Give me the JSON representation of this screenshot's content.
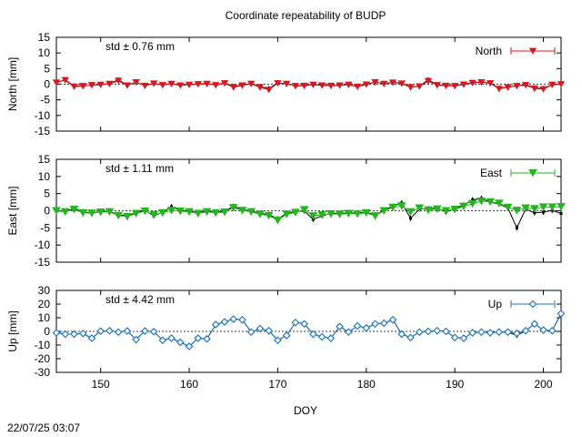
{
  "title": "Coordinate repeatability of BUDP",
  "timestamp": "22/07/25 03:07",
  "chart_data": {
    "type": "line",
    "x_axis": {
      "label": "DOY",
      "range": [
        145,
        202
      ],
      "ticks": [
        "150",
        "160",
        "170",
        "180",
        "190",
        "200"
      ]
    },
    "x": [
      145,
      146,
      147,
      148,
      149,
      150,
      151,
      152,
      153,
      154,
      155,
      156,
      157,
      158,
      159,
      160,
      161,
      162,
      163,
      164,
      165,
      166,
      167,
      168,
      169,
      170,
      171,
      172,
      173,
      174,
      175,
      176,
      177,
      178,
      179,
      180,
      181,
      182,
      183,
      184,
      185,
      186,
      187,
      188,
      189,
      190,
      191,
      192,
      193,
      194,
      195,
      196,
      197,
      198,
      199,
      200,
      201,
      202
    ],
    "panels": [
      {
        "ylabel": "North [mm]",
        "ylim": [
          -15,
          15
        ],
        "yticks": [
          "15",
          "10",
          "5",
          "0",
          "-5",
          "-10",
          "-15"
        ],
        "std_text": "std ± 0.76 mm",
        "legend": "North",
        "color": "#e0141c",
        "values": [
          0.5,
          1.3,
          -0.8,
          -0.6,
          -0.3,
          -0.2,
          0.1,
          1.1,
          -0.4,
          0.6,
          -0.5,
          0.2,
          -0.3,
          0.1,
          -0.4,
          -0.2,
          0.0,
          0.1,
          -0.3,
          0.3,
          -1.0,
          -0.4,
          0.1,
          -1.0,
          -1.8,
          0.3,
          0.1,
          -0.6,
          -0.5,
          -0.2,
          -0.4,
          -0.5,
          -0.4,
          -0.2,
          -0.8,
          -0.1,
          0.6,
          0.1,
          0.5,
          0.2,
          -1.0,
          -0.7,
          1.0,
          -0.3,
          -0.5,
          -0.6,
          -0.1,
          0.4,
          0.6,
          0.3,
          -1.5,
          -1.0,
          -0.6,
          -0.3,
          -1.4,
          -1.6,
          -0.2,
          0.0
        ],
        "black_values": [
          0.5,
          1.4,
          -0.6,
          -0.6,
          -0.3,
          -0.1,
          0.2,
          1.4,
          -0.3,
          0.7,
          -0.4,
          0.3,
          -0.2,
          0.2,
          -0.3,
          -0.1,
          0.1,
          0.2,
          -0.2,
          0.4,
          -0.8,
          -0.3,
          0.2,
          -0.8,
          -1.4,
          0.4,
          0.2,
          -0.5,
          -0.4,
          -0.1,
          -0.3,
          -0.4,
          -0.3,
          -0.1,
          -0.7,
          0.0,
          0.7,
          0.2,
          0.6,
          0.3,
          -0.9,
          -0.6,
          1.4,
          -0.2,
          -0.4,
          -0.5,
          0.0,
          0.5,
          0.7,
          0.4,
          -1.3,
          -0.9,
          -0.5,
          -0.2,
          -1.2,
          -1.4,
          -0.1,
          0.1
        ]
      },
      {
        "ylabel": "East [mm]",
        "ylim": [
          -15,
          15
        ],
        "yticks": [
          "15",
          "10",
          "5",
          "0",
          "-5",
          "-10",
          "-15"
        ],
        "std_text": "std ± 1.11 mm",
        "legend": "East",
        "color": "#22b81c",
        "values": [
          0.0,
          -0.3,
          0.4,
          -0.6,
          -0.7,
          -0.4,
          -0.3,
          -1.4,
          -1.7,
          -0.8,
          -0.1,
          -1.2,
          -0.6,
          0.1,
          -0.1,
          -0.3,
          -0.8,
          -0.3,
          -0.6,
          -0.4,
          0.9,
          0.1,
          -0.3,
          -1.0,
          -1.4,
          -2.8,
          -1.0,
          -0.5,
          0.3,
          -1.5,
          -1.2,
          -0.9,
          -1.0,
          -0.8,
          -0.9,
          -0.6,
          -1.5,
          0.0,
          1.0,
          1.4,
          -0.3,
          0.8,
          0.2,
          0.5,
          0.0,
          0.4,
          1.3,
          2.1,
          2.8,
          2.6,
          2.2,
          1.0,
          0.1,
          0.8,
          0.6,
          1.1,
          1.1,
          1.2
        ],
        "black_values": [
          -0.1,
          -0.2,
          0.7,
          -0.5,
          -0.6,
          -0.3,
          -0.2,
          -1.2,
          -1.5,
          -0.6,
          0.1,
          -1.5,
          -0.4,
          1.2,
          0.1,
          -0.1,
          -0.6,
          -0.1,
          -0.4,
          -0.2,
          1.3,
          0.3,
          -0.1,
          -0.8,
          -1.1,
          -2.4,
          -0.8,
          -0.2,
          -0.1,
          -2.5,
          -1.5,
          -0.7,
          -0.8,
          -0.6,
          -0.7,
          -0.4,
          -1.3,
          0.2,
          1.3,
          2.3,
          -2.2,
          0.5,
          0.6,
          0.8,
          -0.4,
          0.7,
          1.6,
          3.2,
          3.6,
          2.5,
          2.0,
          0.8,
          -5.0,
          0.5,
          -0.6,
          -0.4,
          0.1,
          -0.8
        ]
      },
      {
        "ylabel": "Up [mm]",
        "ylim": [
          -30,
          30
        ],
        "yticks": [
          "30",
          "20",
          "10",
          "0",
          "-10",
          "-20",
          "-30"
        ],
        "std_text": "std ± 4.42 mm",
        "legend": "Up",
        "color": "#1c78c8",
        "values": [
          -1.0,
          -2.0,
          -2.0,
          -1.5,
          -5.0,
          0.2,
          0.5,
          -0.5,
          0.3,
          -6.0,
          0.3,
          -0.2,
          -6.5,
          -5.0,
          -8.0,
          -11.0,
          -5.0,
          -5.5,
          5.0,
          7.0,
          9.0,
          8.5,
          -0.5,
          2.0,
          0.5,
          -6.5,
          -3.0,
          6.5,
          5.5,
          -2.0,
          -4.0,
          -5.0,
          3.5,
          -0.5,
          4.0,
          2.5,
          5.5,
          6.0,
          8.5,
          -2.0,
          -4.5,
          -0.5,
          0.0,
          0.5,
          0.0,
          -4.5,
          -5.0,
          -1.0,
          -0.5,
          -1.0,
          -0.5,
          -0.5,
          -1.5,
          0.5,
          5.5,
          1.0,
          0.5,
          13.0
        ],
        "black_values": [
          -1.0,
          -2.0,
          -2.0,
          -1.5,
          -5.0,
          0.2,
          0.5,
          -0.5,
          0.3,
          -6.0,
          0.3,
          -0.2,
          -6.5,
          -5.0,
          -8.0,
          -11.0,
          -5.0,
          -5.5,
          5.0,
          7.0,
          9.0,
          8.5,
          -0.5,
          2.0,
          0.5,
          -6.5,
          -3.0,
          6.5,
          5.5,
          -2.0,
          -4.0,
          -5.0,
          3.5,
          -0.5,
          4.0,
          2.5,
          5.5,
          6.0,
          8.5,
          -2.0,
          -4.5,
          -0.5,
          0.0,
          0.5,
          0.0,
          -4.5,
          -5.0,
          -1.0,
          -0.5,
          -1.0,
          -0.5,
          -0.5,
          -3.0,
          0.5,
          5.5,
          1.0,
          0.5,
          13.0
        ]
      }
    ]
  }
}
